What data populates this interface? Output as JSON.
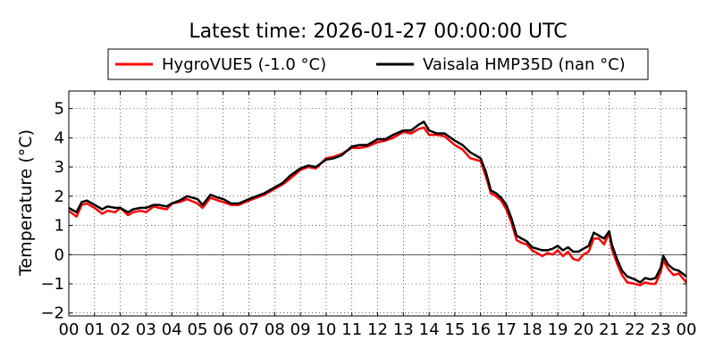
{
  "chart_data": {
    "type": "line",
    "title": "Latest time: 2026-01-27 00:00:00 UTC",
    "ylabel": "Temperature (°C)",
    "xlabel": "",
    "xlim": [
      0,
      24
    ],
    "ylim": [
      -2.1,
      5.6
    ],
    "x_ticks": [
      0,
      1,
      2,
      3,
      4,
      5,
      6,
      7,
      8,
      9,
      10,
      11,
      12,
      13,
      14,
      15,
      16,
      17,
      18,
      19,
      20,
      21,
      22,
      23,
      24
    ],
    "x_tick_labels": [
      "00",
      "01",
      "02",
      "03",
      "04",
      "05",
      "06",
      "07",
      "08",
      "09",
      "10",
      "11",
      "12",
      "13",
      "14",
      "15",
      "16",
      "17",
      "18",
      "19",
      "20",
      "21",
      "22",
      "23",
      "00"
    ],
    "y_ticks": [
      -2,
      -1,
      0,
      1,
      2,
      3,
      4,
      5
    ],
    "y_tick_labels": [
      "−2",
      "−1",
      "0",
      "1",
      "2",
      "3",
      "4",
      "5"
    ],
    "zero_line": true,
    "grid": true,
    "legend_position": "top-center, above plot",
    "series": [
      {
        "name": "HygroVUE5 (-1.0 °C)",
        "color": "#ff0000",
        "x": [
          0,
          0.3,
          0.5,
          0.7,
          1,
          1.3,
          1.5,
          1.8,
          2,
          2.3,
          2.5,
          2.8,
          3,
          3.3,
          3.5,
          3.8,
          4,
          4.3,
          4.6,
          5,
          5.2,
          5.5,
          5.8,
          6,
          6.3,
          6.6,
          7,
          7.3,
          7.6,
          8,
          8.3,
          8.6,
          9,
          9.3,
          9.6,
          10,
          10.3,
          10.6,
          11,
          11.3,
          11.6,
          12,
          12.3,
          12.6,
          13,
          13.3,
          13.6,
          13.8,
          14,
          14.3,
          14.6,
          15,
          15.3,
          15.6,
          16,
          16.2,
          16.4,
          16.6,
          16.8,
          17,
          17.2,
          17.4,
          17.6,
          17.8,
          18,
          18.2,
          18.4,
          18.6,
          18.8,
          19,
          19.2,
          19.4,
          19.6,
          19.8,
          20,
          20.2,
          20.4,
          20.6,
          20.8,
          21,
          21.1,
          21.3,
          21.5,
          21.7,
          22,
          22.2,
          22.4,
          22.6,
          22.8,
          23,
          23.1,
          23.3,
          23.5,
          23.7,
          24
        ],
        "values": [
          1.5,
          1.3,
          1.7,
          1.75,
          1.6,
          1.4,
          1.5,
          1.45,
          1.6,
          1.35,
          1.45,
          1.5,
          1.45,
          1.65,
          1.6,
          1.55,
          1.75,
          1.8,
          1.9,
          1.75,
          1.6,
          1.95,
          1.85,
          1.8,
          1.7,
          1.7,
          1.85,
          1.95,
          2.05,
          2.25,
          2.4,
          2.6,
          2.9,
          3.0,
          2.95,
          3.3,
          3.35,
          3.45,
          3.65,
          3.65,
          3.7,
          3.85,
          3.9,
          4.0,
          4.2,
          4.15,
          4.3,
          4.35,
          4.1,
          4.1,
          4.05,
          3.75,
          3.6,
          3.3,
          3.2,
          2.7,
          2.1,
          2.0,
          1.85,
          1.55,
          1.1,
          0.5,
          0.4,
          0.35,
          0.15,
          0.05,
          -0.05,
          0.05,
          0.0,
          0.15,
          -0.05,
          0.1,
          -0.15,
          -0.2,
          0.0,
          0.1,
          0.55,
          0.55,
          0.35,
          0.75,
          0.2,
          -0.3,
          -0.7,
          -0.95,
          -1.0,
          -1.05,
          -0.95,
          -1.0,
          -1.0,
          -0.6,
          -0.2,
          -0.5,
          -0.7,
          -0.65,
          -0.95
        ]
      },
      {
        "name": "Vaisala HMP35D (nan °C)",
        "color": "#000000",
        "x": [
          0,
          0.3,
          0.5,
          0.7,
          1,
          1.3,
          1.5,
          1.8,
          2,
          2.3,
          2.5,
          2.8,
          3,
          3.3,
          3.5,
          3.8,
          4,
          4.3,
          4.6,
          5,
          5.2,
          5.5,
          5.8,
          6,
          6.3,
          6.6,
          7,
          7.3,
          7.6,
          8,
          8.3,
          8.6,
          9,
          9.3,
          9.6,
          10,
          10.3,
          10.6,
          11,
          11.3,
          11.6,
          12,
          12.3,
          12.6,
          13,
          13.3,
          13.6,
          13.8,
          14,
          14.3,
          14.6,
          15,
          15.3,
          15.6,
          16,
          16.2,
          16.4,
          16.6,
          16.8,
          17,
          17.2,
          17.4,
          17.6,
          17.8,
          18,
          18.2,
          18.4,
          18.6,
          18.8,
          19,
          19.2,
          19.4,
          19.6,
          19.8,
          20,
          20.2,
          20.4,
          20.6,
          20.8,
          21,
          21.1,
          21.3,
          21.5,
          21.7,
          22,
          22.2,
          22.4,
          22.6,
          22.8,
          23,
          23.1,
          23.3,
          23.5,
          23.7,
          24
        ],
        "values": [
          1.6,
          1.45,
          1.8,
          1.85,
          1.7,
          1.55,
          1.65,
          1.6,
          1.6,
          1.45,
          1.55,
          1.6,
          1.6,
          1.7,
          1.7,
          1.65,
          1.75,
          1.85,
          2.0,
          1.9,
          1.7,
          2.05,
          1.95,
          1.9,
          1.75,
          1.75,
          1.9,
          2.0,
          2.1,
          2.3,
          2.45,
          2.7,
          2.95,
          3.05,
          3.0,
          3.25,
          3.3,
          3.4,
          3.7,
          3.75,
          3.75,
          3.95,
          3.95,
          4.1,
          4.25,
          4.25,
          4.45,
          4.55,
          4.25,
          4.15,
          4.15,
          3.9,
          3.75,
          3.5,
          3.3,
          2.85,
          2.2,
          2.1,
          1.95,
          1.7,
          1.25,
          0.65,
          0.55,
          0.45,
          0.25,
          0.2,
          0.15,
          0.15,
          0.2,
          0.3,
          0.15,
          0.25,
          0.1,
          0.1,
          0.2,
          0.3,
          0.75,
          0.65,
          0.55,
          0.8,
          0.35,
          -0.15,
          -0.55,
          -0.75,
          -0.85,
          -0.95,
          -0.8,
          -0.85,
          -0.8,
          -0.45,
          -0.05,
          -0.35,
          -0.5,
          -0.55,
          -0.75
        ]
      }
    ]
  }
}
